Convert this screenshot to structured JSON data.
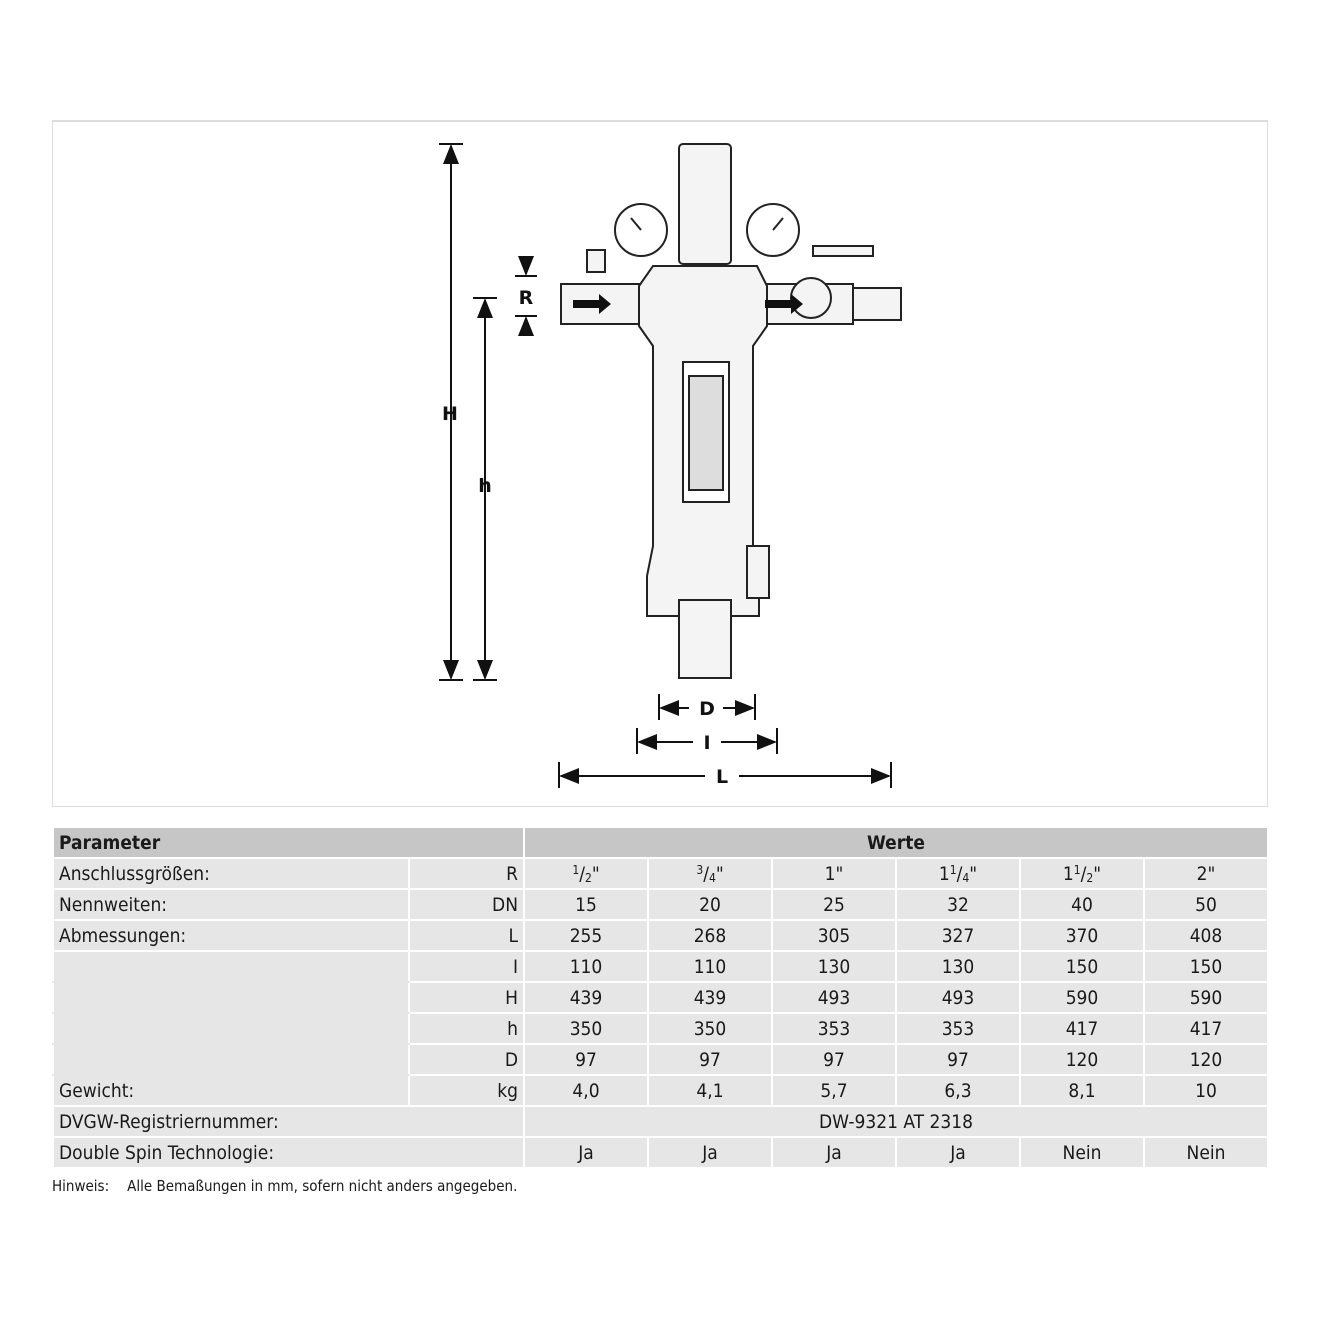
{
  "drawing": {
    "labels": {
      "H": "H",
      "h": "h",
      "R": "R",
      "D": "D",
      "I": "I",
      "L": "L"
    }
  },
  "table": {
    "header": {
      "parameter": "Parameter",
      "values": "Werte"
    },
    "rows": [
      {
        "label": "Anschlussgrößen:",
        "unit": "R",
        "values": [
          {
            "whole": "",
            "num": "1",
            "den": "2",
            "suffix": "\""
          },
          {
            "whole": "",
            "num": "3",
            "den": "4",
            "suffix": "\""
          },
          {
            "whole": "1",
            "num": "",
            "den": "",
            "suffix": "\""
          },
          {
            "whole": "1",
            "num": "1",
            "den": "4",
            "suffix": "\""
          },
          {
            "whole": "1",
            "num": "1",
            "den": "2",
            "suffix": "\""
          },
          {
            "whole": "2",
            "num": "",
            "den": "",
            "suffix": "\""
          }
        ]
      },
      {
        "label": "Nennweiten:",
        "unit": "DN",
        "values": [
          "15",
          "20",
          "25",
          "32",
          "40",
          "50"
        ]
      },
      {
        "label": "Abmessungen:",
        "unit": "L",
        "values": [
          "255",
          "268",
          "305",
          "327",
          "370",
          "408"
        ]
      },
      {
        "label": "",
        "unit": "I",
        "values": [
          "110",
          "110",
          "130",
          "130",
          "150",
          "150"
        ]
      },
      {
        "label": "",
        "unit": "H",
        "values": [
          "439",
          "439",
          "493",
          "493",
          "590",
          "590"
        ]
      },
      {
        "label": "",
        "unit": "h",
        "values": [
          "350",
          "350",
          "353",
          "353",
          "417",
          "417"
        ]
      },
      {
        "label": "",
        "unit": "D",
        "values": [
          "97",
          "97",
          "97",
          "97",
          "120",
          "120"
        ]
      },
      {
        "label": "Gewicht:",
        "unit": "kg",
        "values": [
          "4,0",
          "4,1",
          "5,7",
          "6,3",
          "8,1",
          "10"
        ]
      }
    ],
    "dvgw": {
      "label": "DVGW-Registriernummer:",
      "value": "DW-9321 AT 2318"
    },
    "spin": {
      "label": "Double Spin Technologie:",
      "values": [
        "Ja",
        "Ja",
        "Ja",
        "Ja",
        "Nein",
        "Nein"
      ]
    }
  },
  "note": {
    "label": "Hinweis:",
    "text": "Alle Bemaßungen in mm, sofern nicht anders angegeben."
  }
}
